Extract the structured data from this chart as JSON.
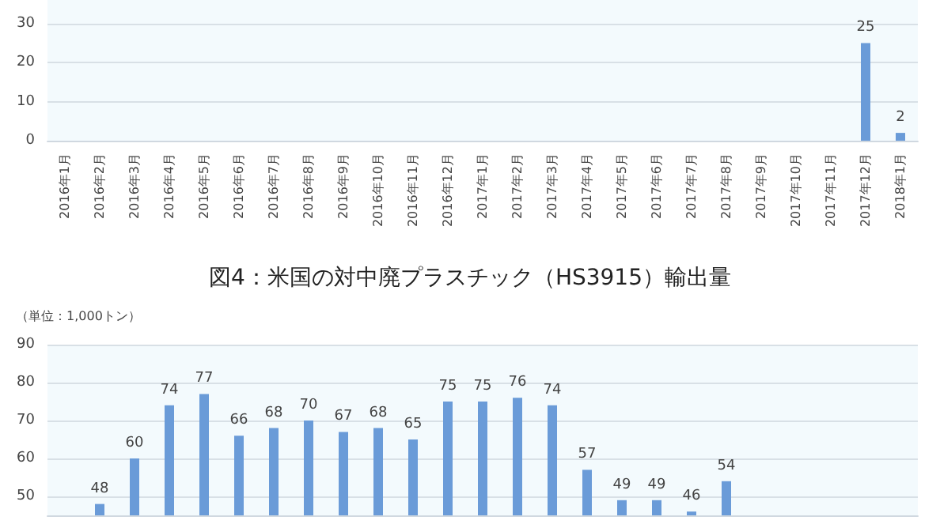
{
  "chart_data": [
    {
      "type": "bar",
      "categories": [
        "2016年1月",
        "2016年2月",
        "2016年3月",
        "2016年4月",
        "2016年5月",
        "2016年6月",
        "2016年7月",
        "2016年8月",
        "2016年9月",
        "2016年10月",
        "2016年11月",
        "2016年12月",
        "2017年1月",
        "2017年2月",
        "2017年3月",
        "2017年4月",
        "2017年5月",
        "2017年6月",
        "2017年7月",
        "2017年8月",
        "2017年9月",
        "2017年10月",
        "2017年11月",
        "2017年12月",
        "2018年1月"
      ],
      "series": [
        {
          "color": "#6a9bd8",
          "values": [
            null,
            null,
            null,
            null,
            null,
            null,
            null,
            null,
            null,
            null,
            null,
            null,
            null,
            null,
            null,
            null,
            null,
            null,
            null,
            null,
            null,
            null,
            null,
            25,
            2
          ]
        }
      ],
      "ylim": [
        0,
        36
      ],
      "yticks": [
        0,
        10,
        20,
        30
      ],
      "grid": "y",
      "data_labels": true
    },
    {
      "type": "bar",
      "title": "図4：米国の対中廃プラスチック（HS3915）輸出量",
      "ylabel": "（単位：1,000トン）",
      "categories": [
        null,
        null,
        null,
        null,
        null,
        null,
        null,
        null,
        null,
        null,
        null,
        null,
        null,
        null,
        null,
        null,
        null,
        null,
        null,
        null,
        null,
        null,
        null,
        null,
        null
      ],
      "series": [
        {
          "color": "#6a9bd8",
          "values": [
            null,
            48,
            60,
            74,
            77,
            66,
            68,
            70,
            67,
            68,
            65,
            75,
            75,
            76,
            74,
            57,
            49,
            49,
            46,
            54,
            null,
            null,
            null,
            null,
            null
          ]
        }
      ],
      "ylim": [
        45,
        90
      ],
      "yticks": [
        50,
        60,
        70,
        80,
        90
      ],
      "grid": "y",
      "data_labels": true
    }
  ]
}
